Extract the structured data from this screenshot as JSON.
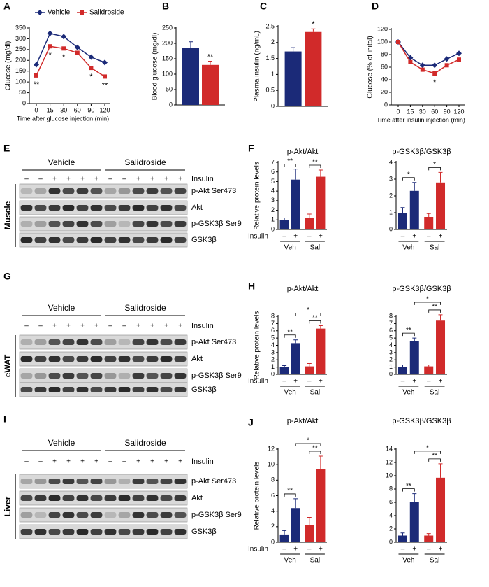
{
  "chart_data": [
    {
      "type": "line",
      "panel": "A",
      "ylabel": "Glucose (mg/dl)",
      "xlabel": "Time after glucose injection (min)",
      "categories": [
        "0",
        "15",
        "30",
        "60",
        "90",
        "120"
      ],
      "series": [
        {
          "name": "Vehicle",
          "color": "#1b2a78",
          "marker": "diamond",
          "values": [
            180,
            325,
            310,
            260,
            215,
            190
          ]
        },
        {
          "name": "Salidroside",
          "color": "#d12a2a",
          "marker": "square",
          "values": [
            130,
            265,
            255,
            235,
            165,
            125
          ],
          "annotations": [
            "**",
            "*",
            "*",
            null,
            "*",
            "**"
          ]
        }
      ],
      "ylim": [
        0,
        350
      ],
      "yticks": [
        0,
        50,
        100,
        150,
        200,
        250,
        300,
        350
      ]
    },
    {
      "type": "bar",
      "panel": "B",
      "ylabel": "Blood glucose (mg/dl)",
      "values": [
        185,
        130
      ],
      "errors": [
        20,
        12
      ],
      "colors": [
        "#1b2a78",
        "#d12a2a"
      ],
      "annotations": [
        null,
        "**"
      ],
      "ylim": [
        0,
        250
      ],
      "yticks": [
        0,
        50,
        100,
        150,
        200,
        250
      ]
    },
    {
      "type": "bar",
      "panel": "C",
      "ylabel": "Plasma insulin (ng/mL)",
      "values": [
        1.72,
        2.33
      ],
      "errors": [
        0.12,
        0.1
      ],
      "colors": [
        "#1b2a78",
        "#d12a2a"
      ],
      "annotations": [
        null,
        "*"
      ],
      "ylim": [
        0,
        2.5
      ],
      "yticks": [
        0,
        0.5,
        1,
        1.5,
        2,
        2.5
      ]
    },
    {
      "type": "line",
      "panel": "D",
      "ylabel": "Glucose (% of inital)",
      "xlabel": "Time after insulin injection (min)",
      "categories": [
        "0",
        "15",
        "30",
        "60",
        "90",
        "120"
      ],
      "series": [
        {
          "color": "#1b2a78",
          "marker": "diamond",
          "values": [
            100,
            75,
            63,
            63,
            73,
            82
          ]
        },
        {
          "color": "#d12a2a",
          "marker": "square",
          "values": [
            100,
            68,
            56,
            50,
            63,
            72
          ],
          "annotations": [
            null,
            null,
            null,
            "*",
            null,
            null
          ]
        }
      ],
      "ylim": [
        0,
        120
      ],
      "yticks": [
        0,
        20,
        40,
        60,
        80,
        100,
        120
      ]
    },
    {
      "type": "bar",
      "panel": "F",
      "title": "p-Akt/Akt",
      "ylabel": "Relative protein levels",
      "insulin_label": "Insulin",
      "values": [
        1,
        5.2,
        1.2,
        5.5
      ],
      "errors": [
        0.2,
        1.1,
        0.4,
        0.7
      ],
      "colors": [
        "#1b2a78",
        "#1b2a78",
        "#d12a2a",
        "#d12a2a"
      ],
      "signs": [
        "–",
        "+",
        "–",
        "+"
      ],
      "groups": [
        "Veh",
        "Sal"
      ],
      "brackets": [
        {
          "bars": [
            0,
            1
          ],
          "text": "**"
        },
        {
          "bars": [
            2,
            3
          ],
          "text": "**"
        }
      ],
      "ylim": [
        0,
        7
      ],
      "yticks": [
        0,
        1,
        2,
        3,
        4,
        5,
        6,
        7
      ]
    },
    {
      "type": "bar",
      "title": "p-GSK3β/GSK3β",
      "values": [
        1,
        2.3,
        0.75,
        2.8
      ],
      "errors": [
        0.3,
        0.5,
        0.2,
        0.6
      ],
      "colors": [
        "#1b2a78",
        "#1b2a78",
        "#d12a2a",
        "#d12a2a"
      ],
      "signs": [
        "–",
        "+",
        "–",
        "+"
      ],
      "groups": [
        "Veh",
        "Sal"
      ],
      "brackets": [
        {
          "bars": [
            0,
            1
          ],
          "text": "*"
        },
        {
          "bars": [
            2,
            3
          ],
          "text": "*"
        }
      ],
      "ylim": [
        0,
        4
      ],
      "yticks": [
        0,
        1,
        2,
        3,
        4
      ]
    },
    {
      "type": "bar",
      "panel": "H",
      "title": "p-Akt/Akt",
      "ylabel": "Relative protein levels",
      "insulin_label": "Insulin",
      "values": [
        1,
        4.3,
        1.1,
        6.3
      ],
      "errors": [
        0.2,
        0.45,
        0.4,
        0.4
      ],
      "colors": [
        "#1b2a78",
        "#1b2a78",
        "#d12a2a",
        "#d12a2a"
      ],
      "signs": [
        "–",
        "+",
        "–",
        "+"
      ],
      "groups": [
        "Veh",
        "Sal"
      ],
      "brackets": [
        {
          "bars": [
            0,
            1
          ],
          "text": "**"
        },
        {
          "bars": [
            2,
            3
          ],
          "text": "**"
        },
        {
          "bars": [
            1,
            3
          ],
          "text": "*"
        }
      ],
      "ylim": [
        0,
        8
      ],
      "yticks": [
        0,
        1,
        2,
        3,
        4,
        5,
        6,
        7,
        8
      ]
    },
    {
      "type": "bar",
      "title": "p-GSK3β/GSK3β",
      "values": [
        1,
        4.6,
        1.1,
        7.4
      ],
      "errors": [
        0.3,
        0.4,
        0.2,
        0.8
      ],
      "colors": [
        "#1b2a78",
        "#1b2a78",
        "#d12a2a",
        "#d12a2a"
      ],
      "signs": [
        "–",
        "+",
        "–",
        "+"
      ],
      "groups": [
        "Veh",
        "Sal"
      ],
      "brackets": [
        {
          "bars": [
            0,
            1
          ],
          "text": "**"
        },
        {
          "bars": [
            2,
            3
          ],
          "text": "**"
        },
        {
          "bars": [
            1,
            3
          ],
          "text": "*"
        }
      ],
      "ylim": [
        0,
        8
      ],
      "yticks": [
        0,
        1,
        2,
        3,
        4,
        5,
        6,
        7,
        8
      ]
    },
    {
      "type": "bar",
      "panel": "J",
      "title": "p-Akt/Akt",
      "ylabel": "Relative protein levels",
      "insulin_label": "Insulin",
      "values": [
        1,
        4.4,
        2.2,
        9.4
      ],
      "errors": [
        0.5,
        1.2,
        1.0,
        1.7
      ],
      "colors": [
        "#1b2a78",
        "#1b2a78",
        "#d12a2a",
        "#d12a2a"
      ],
      "signs": [
        "–",
        "+",
        "–",
        "+"
      ],
      "groups": [
        "Veh",
        "Sal"
      ],
      "brackets": [
        {
          "bars": [
            0,
            1
          ],
          "text": "**"
        },
        {
          "bars": [
            2,
            3
          ],
          "text": "**"
        },
        {
          "bars": [
            1,
            3
          ],
          "text": "*"
        }
      ],
      "ylim": [
        0,
        12
      ],
      "yticks": [
        0,
        2,
        4,
        6,
        8,
        10,
        12
      ]
    },
    {
      "type": "bar",
      "title": "p-GSK3β/GSK3β",
      "values": [
        1,
        6.1,
        1.0,
        9.7
      ],
      "errors": [
        0.4,
        1.2,
        0.3,
        2.1
      ],
      "colors": [
        "#1b2a78",
        "#1b2a78",
        "#d12a2a",
        "#d12a2a"
      ],
      "signs": [
        "–",
        "+",
        "–",
        "+"
      ],
      "groups": [
        "Veh",
        "Sal"
      ],
      "brackets": [
        {
          "bars": [
            0,
            1
          ],
          "text": "**"
        },
        {
          "bars": [
            2,
            3
          ],
          "text": "**"
        },
        {
          "bars": [
            1,
            3
          ],
          "text": "*"
        }
      ],
      "ylim": [
        0,
        14
      ],
      "yticks": [
        0,
        2,
        4,
        6,
        8,
        10,
        12,
        14
      ]
    }
  ],
  "blots": [
    {
      "panel": "E",
      "tissue": "Muscle",
      "groups": [
        "Vehicle",
        "Salidroside"
      ],
      "insulin_label": "Insulin",
      "signs": [
        "–",
        "–",
        "+",
        "+",
        "+",
        "+",
        "–",
        "–",
        "+",
        "+",
        "+",
        "+"
      ],
      "rows": [
        "p-Akt Ser473",
        "Akt",
        "p-GSK3β Ser9",
        "GSK3β"
      ]
    },
    {
      "panel": "G",
      "tissue": "eWAT",
      "groups": [
        "Vehicle",
        "Salidroside"
      ],
      "insulin_label": "Insulin",
      "signs": [
        "–",
        "–",
        "+",
        "+",
        "+",
        "+",
        "–",
        "–",
        "+",
        "+",
        "+",
        "+"
      ],
      "rows": [
        "p-Akt Ser473",
        "Akt",
        "p-GSK3β Ser9",
        "GSK3β"
      ]
    },
    {
      "panel": "I",
      "tissue": "Liver",
      "groups": [
        "Vehicle",
        "Salidroside"
      ],
      "insulin_label": "Insulin",
      "signs": [
        "–",
        "–",
        "+",
        "+",
        "+",
        "+",
        "–",
        "–",
        "+",
        "+",
        "+",
        "+"
      ],
      "rows": [
        "p-Akt Ser473",
        "Akt",
        "p-GSK3β Ser9",
        "GSK3β"
      ]
    }
  ]
}
